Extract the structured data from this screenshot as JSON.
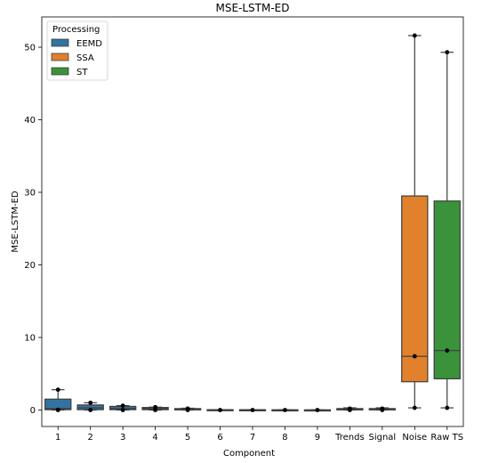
{
  "chart_data": {
    "type": "box",
    "title": "MSE-LSTM-ED",
    "xlabel": "Component",
    "ylabel": "MSE-LSTM-ED",
    "ylim": [
      -2.5,
      54
    ],
    "yticks": [
      0,
      10,
      20,
      30,
      40,
      50
    ],
    "grid": false,
    "legend": {
      "title": "Processing",
      "placement": "top-left",
      "entries": [
        {
          "name": "EEMD",
          "color": "#3274a1"
        },
        {
          "name": "SSA",
          "color": "#e1812c"
        },
        {
          "name": "ST",
          "color": "#3a923a"
        }
      ]
    },
    "categories": [
      "1",
      "2",
      "3",
      "4",
      "5",
      "6",
      "7",
      "8",
      "9",
      "Trends",
      "Signal",
      "Noise",
      "Raw TS"
    ],
    "boxes": [
      {
        "category": "1",
        "processing": "EEMD",
        "whislo": 0.0,
        "q1": 0.05,
        "med": 0.2,
        "q3": 1.5,
        "whishi": 2.8,
        "points": [
          0.0,
          0.05,
          2.8
        ]
      },
      {
        "category": "2",
        "processing": "EEMD",
        "whislo": 0.0,
        "q1": 0.05,
        "med": 0.3,
        "q3": 0.7,
        "whishi": 1.0,
        "points": [
          0.0,
          1.0
        ]
      },
      {
        "category": "3",
        "processing": "EEMD",
        "whislo": 0.0,
        "q1": 0.05,
        "med": 0.2,
        "q3": 0.5,
        "whishi": 0.6,
        "points": [
          0.0,
          0.6
        ]
      },
      {
        "category": "4",
        "processing": "EEMD",
        "whislo": 0.0,
        "q1": 0.05,
        "med": 0.2,
        "q3": 0.35,
        "whishi": 0.4,
        "points": [
          0.0,
          0.4
        ]
      },
      {
        "category": "5",
        "processing": "EEMD",
        "whislo": 0.0,
        "q1": 0.02,
        "med": 0.1,
        "q3": 0.2,
        "whishi": 0.25,
        "points": [
          0.0,
          0.2
        ]
      },
      {
        "category": "6",
        "processing": "EEMD",
        "whislo": 0.0,
        "q1": 0.0,
        "med": 0.02,
        "q3": 0.05,
        "whishi": 0.05,
        "points": [
          0.0
        ]
      },
      {
        "category": "7",
        "processing": "EEMD",
        "whislo": 0.0,
        "q1": 0.0,
        "med": 0.02,
        "q3": 0.04,
        "whishi": 0.04,
        "points": [
          0.0
        ]
      },
      {
        "category": "8",
        "processing": "EEMD",
        "whislo": 0.0,
        "q1": 0.0,
        "med": 0.01,
        "q3": 0.03,
        "whishi": 0.03,
        "points": [
          0.0
        ]
      },
      {
        "category": "9",
        "processing": "EEMD",
        "whislo": 0.0,
        "q1": 0.0,
        "med": 0.01,
        "q3": 0.02,
        "whishi": 0.02,
        "points": [
          0.0
        ]
      },
      {
        "category": "Trends",
        "processing": "EEMD",
        "whislo": 0.0,
        "q1": 0.02,
        "med": 0.1,
        "q3": 0.2,
        "whishi": 0.3,
        "points": [
          0.0,
          0.2
        ]
      },
      {
        "category": "Signal",
        "processing": "EEMD",
        "whislo": 0.0,
        "q1": 0.02,
        "med": 0.1,
        "q3": 0.2,
        "whishi": 0.3,
        "points": [
          0.0,
          0.2
        ]
      },
      {
        "category": "Noise",
        "processing": "SSA",
        "whislo": 0.3,
        "q1": 3.9,
        "med": 7.4,
        "q3": 29.5,
        "whishi": 51.6,
        "points": [
          0.3,
          7.4,
          51.6
        ]
      },
      {
        "category": "Raw TS",
        "processing": "ST",
        "whislo": 0.3,
        "q1": 4.3,
        "med": 8.2,
        "q3": 28.8,
        "whishi": 49.3,
        "points": [
          0.3,
          8.2,
          49.3
        ]
      }
    ]
  }
}
